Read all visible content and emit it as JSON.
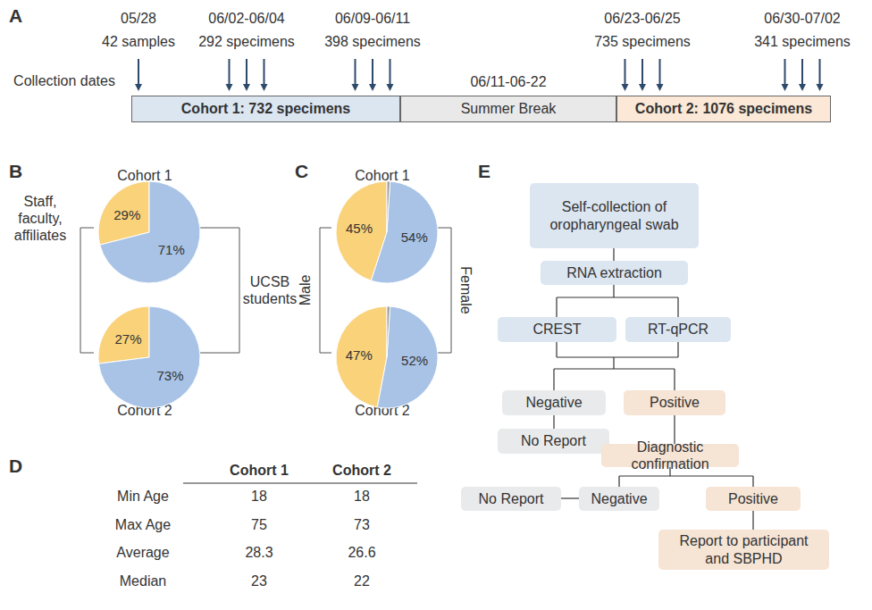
{
  "panel_a": {
    "panel": "A",
    "axis_label": "Collection dates",
    "collections": [
      {
        "dates": "05/28",
        "count": "42 samples",
        "days": 1
      },
      {
        "dates": "06/02-06/04",
        "count": "292 specimens",
        "days": 3
      },
      {
        "dates": "06/09-06/11",
        "count": "398 specimens",
        "days": 3
      },
      {
        "dates": "06/23-06/25",
        "count": "735 specimens",
        "days": 3
      },
      {
        "dates": "06/30-07/02",
        "count": "341 specimens",
        "days": 3
      }
    ],
    "periods": [
      {
        "label": "Cohort 1: 732 specimens",
        "color": "#dce6f1"
      },
      {
        "label": "Summer Break",
        "dates": "06/11-06-22",
        "color": "#e9e9e9"
      },
      {
        "label": "Cohort 2: 1076 specimens",
        "color": "#fbe8d6"
      }
    ]
  },
  "chart_data": [
    {
      "type": "pie",
      "panel": "B",
      "categories": [
        "Staff, faculty, affiliates",
        "UCSB students"
      ],
      "colors": [
        "#f9d27a",
        "#a8c3e6"
      ],
      "data_labels": true,
      "series": [
        {
          "name": "Cohort 1",
          "values": [
            29,
            71
          ],
          "value_labels": [
            "29%",
            "71%"
          ]
        },
        {
          "name": "Cohort 2",
          "values": [
            27,
            73
          ],
          "value_labels": [
            "27%",
            "73%"
          ]
        }
      ]
    },
    {
      "type": "pie",
      "panel": "C",
      "categories": [
        "Male",
        "Female",
        null
      ],
      "colors": [
        "#f9d27a",
        "#a8c3e6",
        "#9e9e9e"
      ],
      "data_labels": true,
      "series": [
        {
          "name": "Cohort 1",
          "values": [
            45,
            54,
            1
          ],
          "value_labels": [
            "45%",
            "54%",
            null
          ]
        },
        {
          "name": "Cohort 2",
          "values": [
            47,
            52,
            1
          ],
          "value_labels": [
            "47%",
            "52%",
            null
          ]
        }
      ]
    }
  ],
  "panel_d": {
    "panel": "D",
    "columns": [
      "Cohort 1",
      "Cohort 2"
    ],
    "rows": [
      [
        "Min Age",
        18,
        18
      ],
      [
        "Max Age",
        75,
        73
      ],
      [
        "Average",
        28.3,
        26.6
      ],
      [
        "Median",
        23,
        22
      ]
    ]
  },
  "panel_e": {
    "panel": "E",
    "nodes": [
      {
        "label": "Self-collection of oropharyngeal swab",
        "color": "#dce6f1"
      },
      {
        "label": "RNA extraction",
        "color": "#dce6f1"
      },
      {
        "label": "CREST",
        "color": "#dce6f1"
      },
      {
        "label": "RT-qPCR",
        "color": "#dce6f1"
      },
      {
        "label": "Negative",
        "color": "#e9eaec"
      },
      {
        "label": "Positive",
        "color": "#f6e4d4"
      },
      {
        "label": "No Report",
        "color": "#e9eaec"
      },
      {
        "label": "Diagnostic confirmation",
        "color": "#f6e4d4"
      },
      {
        "label": "No Report",
        "color": "#e9eaec"
      },
      {
        "label": "Negative",
        "color": "#e9eaec"
      },
      {
        "label": "Positive",
        "color": "#f6e4d4"
      },
      {
        "label": "Report to participant and SBPHD",
        "color": "#f6e4d4"
      }
    ]
  }
}
